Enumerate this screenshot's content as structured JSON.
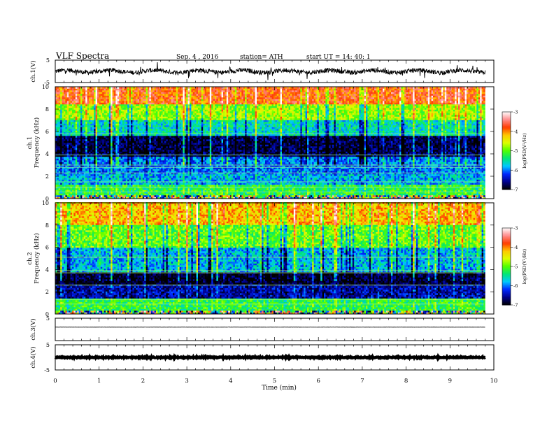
{
  "header": {
    "title": "VLF  Spectra",
    "date": "Sep. 4  , 2016",
    "station": "station= ATH",
    "start": "start  UT =   14: 40: 1"
  },
  "chart_data": [
    {
      "type": "line",
      "panel": "ch1-waveform",
      "ylabel": "ch.1(V)",
      "ylim": [
        -5,
        5
      ],
      "yticks": [
        {
          "v": 5,
          "label": "5"
        },
        {
          "v": -5,
          "label": "-5"
        }
      ],
      "x": [
        0,
        9.8
      ],
      "y_level": 0,
      "y_spread": 1,
      "color": "#000000"
    },
    {
      "type": "heatmap",
      "panel": "ch1-spectrogram",
      "ylabel": "ch.1\nFrequency  (kHz)",
      "ylim": [
        0,
        10
      ],
      "xlim": [
        0,
        9.8
      ],
      "yticks": [
        0,
        2,
        4,
        6,
        8,
        10
      ],
      "color_levels": [
        {
          "range": [
            0,
            0.3
          ],
          "value": "mixed"
        },
        {
          "range": [
            0.3,
            1.2
          ],
          "value": -5.2
        },
        {
          "range": [
            1.2,
            2.2
          ],
          "value": -5.8
        },
        {
          "range": [
            2.2,
            3.8
          ],
          "value": -6.0
        },
        {
          "range": [
            3.8,
            5.7
          ],
          "value": -6.8
        },
        {
          "range": [
            5.7,
            7.0
          ],
          "value": -5.6
        },
        {
          "range": [
            7.0,
            8.5
          ],
          "value": -4.8
        },
        {
          "range": [
            8.5,
            10.0
          ],
          "value": -3.8
        }
      ],
      "colorbar": {
        "label": "log(PSD(V²/Hz)",
        "ticks": [
          "-3",
          "-4",
          "-5",
          "-6",
          "-7"
        ],
        "range": [
          -7,
          -3
        ]
      }
    },
    {
      "type": "heatmap",
      "panel": "ch2-spectrogram",
      "ylabel": "ch.2\nFrequency  (kHz)",
      "ylim": [
        0,
        10
      ],
      "xlim": [
        0,
        9.8
      ],
      "yticks": [
        0,
        2,
        4,
        6,
        8,
        10
      ],
      "color_levels": [
        {
          "range": [
            0,
            0.3
          ],
          "value": "mixed"
        },
        {
          "range": [
            0.3,
            1.4
          ],
          "value": -5.2
        },
        {
          "range": [
            1.4,
            2.6
          ],
          "value": -6.5
        },
        {
          "range": [
            2.6,
            3.7
          ],
          "value": -6.9
        },
        {
          "range": [
            3.7,
            6.0
          ],
          "value": -5.8
        },
        {
          "range": [
            6.0,
            8.0
          ],
          "value": -5.0
        },
        {
          "range": [
            8.0,
            10.0
          ],
          "value": -4.2
        }
      ],
      "colorbar": {
        "label": "log(PSD(V²/Hz)",
        "ticks": [
          "-3",
          "-4",
          "-5",
          "-6",
          "-7"
        ],
        "range": [
          -7,
          -3
        ]
      }
    },
    {
      "type": "line",
      "panel": "ch3-waveform",
      "ylabel": "ch.3(V)",
      "ylim": [
        -5,
        5
      ],
      "yticks": [
        {
          "v": 5,
          "label": "5"
        }
      ],
      "x": [
        0,
        9.8
      ],
      "y_level": 1,
      "y_spread": 0.05,
      "color": "#000000"
    },
    {
      "type": "line",
      "panel": "ch4-waveform",
      "ylabel": "ch.4(V)",
      "ylim": [
        -5,
        5
      ],
      "yticks": [
        {
          "v": 5,
          "label": "5"
        },
        {
          "v": -5,
          "label": "-5"
        }
      ],
      "x": [
        0,
        9.8
      ],
      "y_level": 0,
      "y_spread": 0.2,
      "color": "#000000"
    }
  ],
  "xaxis": {
    "label": "Time  (min)",
    "ticks": [
      "0",
      "1",
      "2",
      "3",
      "4",
      "5",
      "6",
      "7",
      "8",
      "9",
      "10"
    ],
    "range": [
      0,
      10
    ]
  }
}
